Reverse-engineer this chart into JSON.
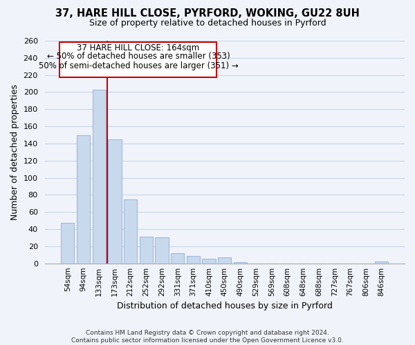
{
  "title1": "37, HARE HILL CLOSE, PYRFORD, WOKING, GU22 8UH",
  "title2": "Size of property relative to detached houses in Pyrford",
  "xlabel": "Distribution of detached houses by size in Pyrford",
  "ylabel": "Number of detached properties",
  "bar_color": "#c8d9ee",
  "bar_edge_color": "#a0b8d8",
  "categories": [
    "54sqm",
    "94sqm",
    "133sqm",
    "173sqm",
    "212sqm",
    "252sqm",
    "292sqm",
    "331sqm",
    "371sqm",
    "410sqm",
    "450sqm",
    "490sqm",
    "529sqm",
    "569sqm",
    "608sqm",
    "648sqm",
    "688sqm",
    "727sqm",
    "767sqm",
    "806sqm",
    "846sqm"
  ],
  "values": [
    47,
    150,
    203,
    145,
    75,
    31,
    30,
    12,
    9,
    5,
    7,
    1,
    0,
    0,
    0,
    0,
    0,
    0,
    0,
    0,
    2
  ],
  "ylim": [
    0,
    260
  ],
  "yticks": [
    0,
    20,
    40,
    60,
    80,
    100,
    120,
    140,
    160,
    180,
    200,
    220,
    240,
    260
  ],
  "vline_color": "#cc0000",
  "annotation_title": "37 HARE HILL CLOSE: 164sqm",
  "annotation_line1": "← 50% of detached houses are smaller (353)",
  "annotation_line2": "50% of semi-detached houses are larger (351) →",
  "annotation_box_color": "#ffffff",
  "annotation_box_edge": "#cc0000",
  "footer1": "Contains HM Land Registry data © Crown copyright and database right 2024.",
  "footer2": "Contains public sector information licensed under the Open Government Licence v3.0.",
  "background_color": "#f0f4fa",
  "plot_bg_color": "#f0f4fa",
  "grid_color": "#c8d4e8"
}
